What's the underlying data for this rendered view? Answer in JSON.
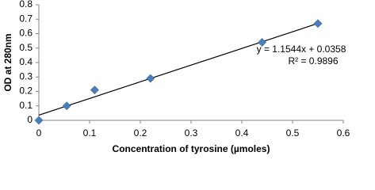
{
  "chart_data": {
    "type": "scatter",
    "x_label": "Concentration of tyrosine (µmoles)",
    "y_label": "OD at 280nm",
    "x": [
      0,
      0.055,
      0.11,
      0.22,
      0.44,
      0.55
    ],
    "values": [
      0,
      0.1,
      0.21,
      0.29,
      0.54,
      0.67
    ],
    "color": "#4a7ebb",
    "xlim": [
      0,
      0.6
    ],
    "xticks": [
      0,
      0.1,
      0.2,
      0.3,
      0.4,
      0.5,
      0.6
    ],
    "ylim": [
      0,
      0.8
    ],
    "yticks": [
      0,
      0.1,
      0.2,
      0.3,
      0.4,
      0.5,
      0.6,
      0.7,
      0.8
    ],
    "grid": false,
    "trendline": {
      "slope": 1.1544,
      "intercept": 0.0358,
      "equation": "y = 1.1544x + 0.0358",
      "r2": "R² = 0.9896"
    }
  }
}
